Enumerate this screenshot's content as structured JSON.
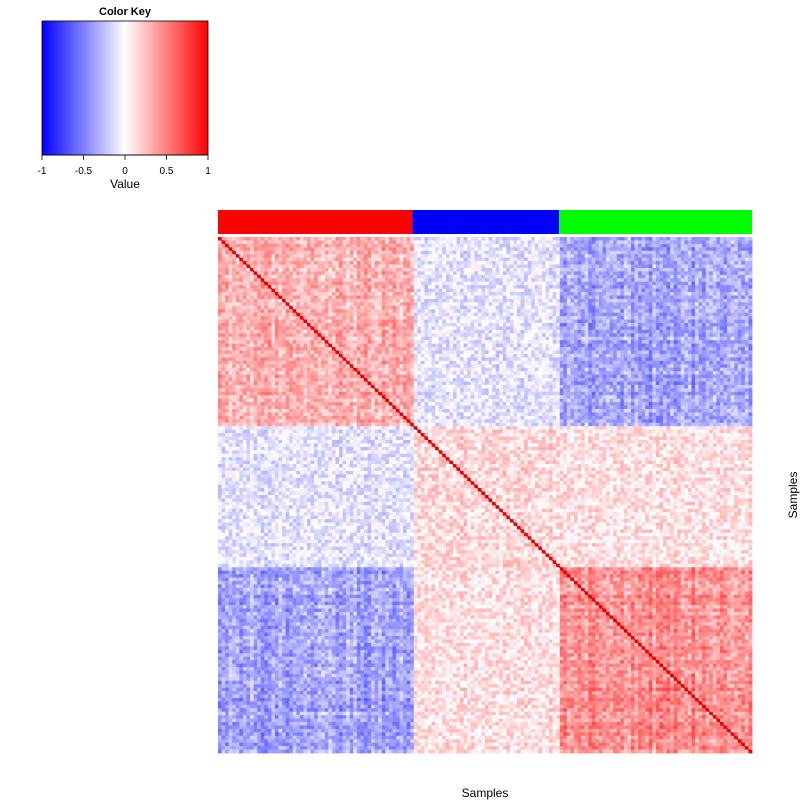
{
  "chart_data": {
    "type": "heatmap",
    "title": "",
    "xlabel": "Samples",
    "ylabel": "Samples",
    "value_range": [
      -1,
      1
    ],
    "color_scale": {
      "low": "#0000ff",
      "mid": "#ffffff",
      "high": "#ff0000"
    },
    "color_key": {
      "title": "Color Key",
      "label": "Value",
      "ticks": [
        "-1",
        "-0.5",
        "0",
        "0.5",
        "1"
      ],
      "tick_values": [
        -1,
        -0.5,
        0,
        0.5,
        1
      ]
    },
    "groups": [
      {
        "color": "#ff0000",
        "fraction": 0.364
      },
      {
        "color": "#0000ff",
        "fraction": 0.275
      },
      {
        "color": "#00ff00",
        "fraction": 0.361
      }
    ],
    "block_means": [
      [
        0.3,
        -0.1,
        -0.35
      ],
      [
        -0.1,
        0.15,
        0.12
      ],
      [
        -0.35,
        0.12,
        0.45
      ]
    ],
    "diagonal_value": 1.0,
    "grid_on": false
  }
}
